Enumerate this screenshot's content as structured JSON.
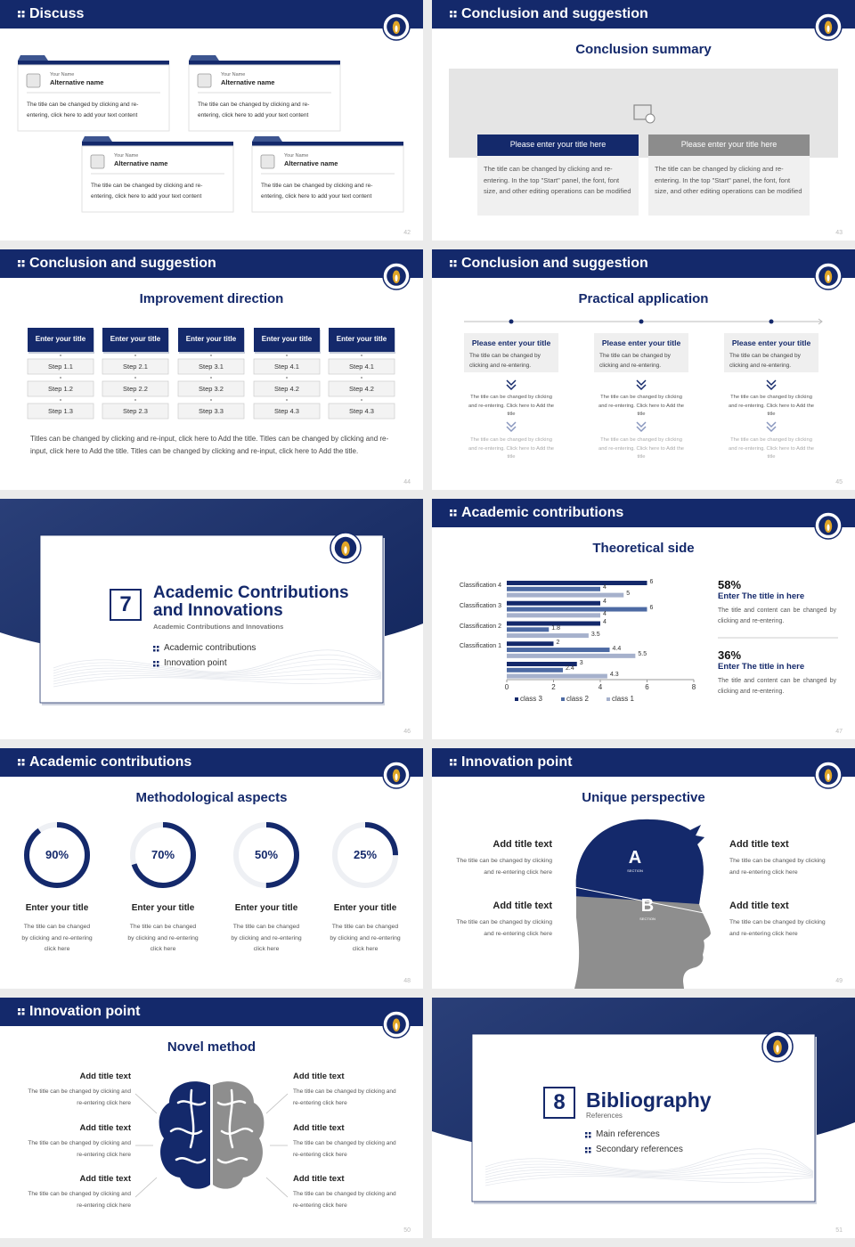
{
  "slides": [
    {
      "number": "42",
      "header": "Discuss",
      "cards": [
        {
          "label": "Your Name",
          "name": "Alternative name",
          "text": "The title can be changed by clicking and re-entering, click here to add your text content"
        },
        {
          "label": "Your Name",
          "name": "Alternative name",
          "text": "The title can be changed by clicking and re-entering, click here to add your text content"
        },
        {
          "label": "Your Name",
          "name": "Alternative name",
          "text": "The title can be changed by clicking and re-entering, click here to add your text content"
        },
        {
          "label": "Your Name",
          "name": "Alternative name",
          "text": "The title can be changed by clicking and re-entering, click here to add your text content"
        }
      ]
    },
    {
      "number": "43",
      "header": "Conclusion and suggestion",
      "title": "Conclusion summary",
      "columns": [
        {
          "heading": "Please enter your title here",
          "text": "The title can be changed by clicking and re-entering. In the top \"Start\" panel, the font, font size, and other editing operations can be modified"
        },
        {
          "heading": "Please enter your title here",
          "text": "The title can be changed by clicking and re-entering. In the top \"Start\" panel, the font, font size, and other editing operations can be modified"
        }
      ]
    },
    {
      "number": "44",
      "header": "Conclusion and suggestion",
      "title": "Improvement direction",
      "columns": [
        {
          "heading": "Enter your title",
          "steps": [
            "Step 1.1",
            "Step 1.2",
            "Step 1.3"
          ]
        },
        {
          "heading": "Enter your title",
          "steps": [
            "Step 2.1",
            "Step 2.2",
            "Step 2.3"
          ]
        },
        {
          "heading": "Enter your title",
          "steps": [
            "Step 3.1",
            "Step 3.2",
            "Step 3.3"
          ]
        },
        {
          "heading": "Enter your title",
          "steps": [
            "Step 4.1",
            "Step 4.2",
            "Step 4.3"
          ]
        },
        {
          "heading": "Enter your title",
          "steps": [
            "Step 4.1",
            "Step 4.2",
            "Step 4.3"
          ]
        }
      ],
      "footer": "Titles can be changed by clicking and re-input, click here to Add the title. Titles can be changed by clicking and re-input, click here to Add the title. Titles can be changed by clicking and re-input, click here to Add the title."
    },
    {
      "number": "45",
      "header": "Conclusion and suggestion",
      "title": "Practical application",
      "columns": [
        {
          "heading": "Please enter your title",
          "text": "The title can be changed by clicking and re-entering.",
          "notes": [
            "The title can be changed by clicking and re-entering. Click here to Add the title",
            "The title can be changed by clicking and re-entering. Click here to Add the title"
          ]
        },
        {
          "heading": "Please enter your title",
          "text": "The title can be changed by clicking and re-entering.",
          "notes": [
            "The title can be changed by clicking and re-entering. Click here to Add the title",
            "The title can be changed by clicking and re-entering. Click here to Add the title"
          ]
        },
        {
          "heading": "Please enter your title",
          "text": "The title can be changed by clicking and re-entering.",
          "notes": [
            "The title can be changed by clicking and re-entering. Click here to Add the title",
            "The title can be changed by clicking and re-entering. Click here to Add the title"
          ]
        }
      ]
    },
    {
      "number": "46",
      "section_number": "7",
      "title": "Academic Contributions and Innovations",
      "subtitle": "Academic Contributions and Innovations",
      "items": [
        "Academic contributions",
        "Innovation point"
      ]
    },
    {
      "number": "47",
      "header": "Academic contributions",
      "title": "Theoretical side",
      "chart": {
        "categories": [
          "Classification 4",
          "Classification 3",
          "Classification 2",
          "Classification 1",
          null
        ],
        "series": [
          {
            "name": "class 3",
            "color": "#14296b",
            "values": [
              6,
              4,
              4,
              2,
              3
            ]
          },
          {
            "name": "class 2",
            "color": "#4d6aa3",
            "values": [
              4,
              6,
              1.8,
              4.4,
              2.4
            ]
          },
          {
            "name": "class 1",
            "color": "#a6b1cc",
            "values": [
              5,
              4,
              3.5,
              5.5,
              4.3
            ]
          }
        ],
        "xlim": [
          0,
          8
        ],
        "xticks": [
          0,
          2,
          4,
          6,
          8
        ]
      },
      "stats": [
        {
          "value": "58%",
          "heading": "Enter The title in here",
          "text": "The title and content can be changed by clicking and re-entering."
        },
        {
          "value": "36%",
          "heading": "Enter The title in here",
          "text": "The title and content can be changed by clicking and re-entering."
        }
      ]
    },
    {
      "number": "48",
      "header": "Academic contributions",
      "title": "Methodological aspects",
      "rings": [
        {
          "value": 90,
          "label": "90%",
          "heading": "Enter your title",
          "text": "The title can be changed by clicking and re-entering click here"
        },
        {
          "value": 70,
          "label": "70%",
          "heading": "Enter your title",
          "text": "The title can be changed by clicking and re-entering click here"
        },
        {
          "value": 50,
          "label": "50%",
          "heading": "Enter your title",
          "text": "The title can be changed by clicking and re-entering click here"
        },
        {
          "value": 25,
          "label": "25%",
          "heading": "Enter your title",
          "text": "The title can be changed by clicking and re-entering click here"
        }
      ]
    },
    {
      "number": "49",
      "header": "Innovation point",
      "title": "Unique perspective",
      "sections": [
        {
          "letter": "A",
          "label": "SECTION"
        },
        {
          "letter": "B",
          "label": "SECTION"
        }
      ],
      "items": [
        {
          "heading": "Add title text",
          "text": "The title can be changed by clicking and re-entering click here"
        },
        {
          "heading": "Add title text",
          "text": "The title can be changed by clicking and re-entering click here"
        },
        {
          "heading": "Add title text",
          "text": "The title can be changed by clicking and re-entering click here"
        },
        {
          "heading": "Add title text",
          "text": "The title can be changed by clicking and re-entering click here"
        }
      ]
    },
    {
      "number": "50",
      "header": "Innovation point",
      "title": "Novel method",
      "items": [
        {
          "heading": "Add title text",
          "text": "The title can be changed by clicking and re-entering click here"
        },
        {
          "heading": "Add title text",
          "text": "The title can be changed by clicking and re-entering click here"
        },
        {
          "heading": "Add title text",
          "text": "The title can be changed by clicking and re-entering click here"
        },
        {
          "heading": "Add title text",
          "text": "The title can be changed by clicking and re-entering click here"
        },
        {
          "heading": "Add title text",
          "text": "The title can be changed by clicking and re-entering click here"
        },
        {
          "heading": "Add title text",
          "text": "The title can be changed by clicking and re-entering click here"
        }
      ]
    },
    {
      "number": "51",
      "section_number": "8",
      "title": "Bibliography",
      "subtitle": "References",
      "items": [
        "Main references",
        "Secondary references"
      ]
    }
  ]
}
